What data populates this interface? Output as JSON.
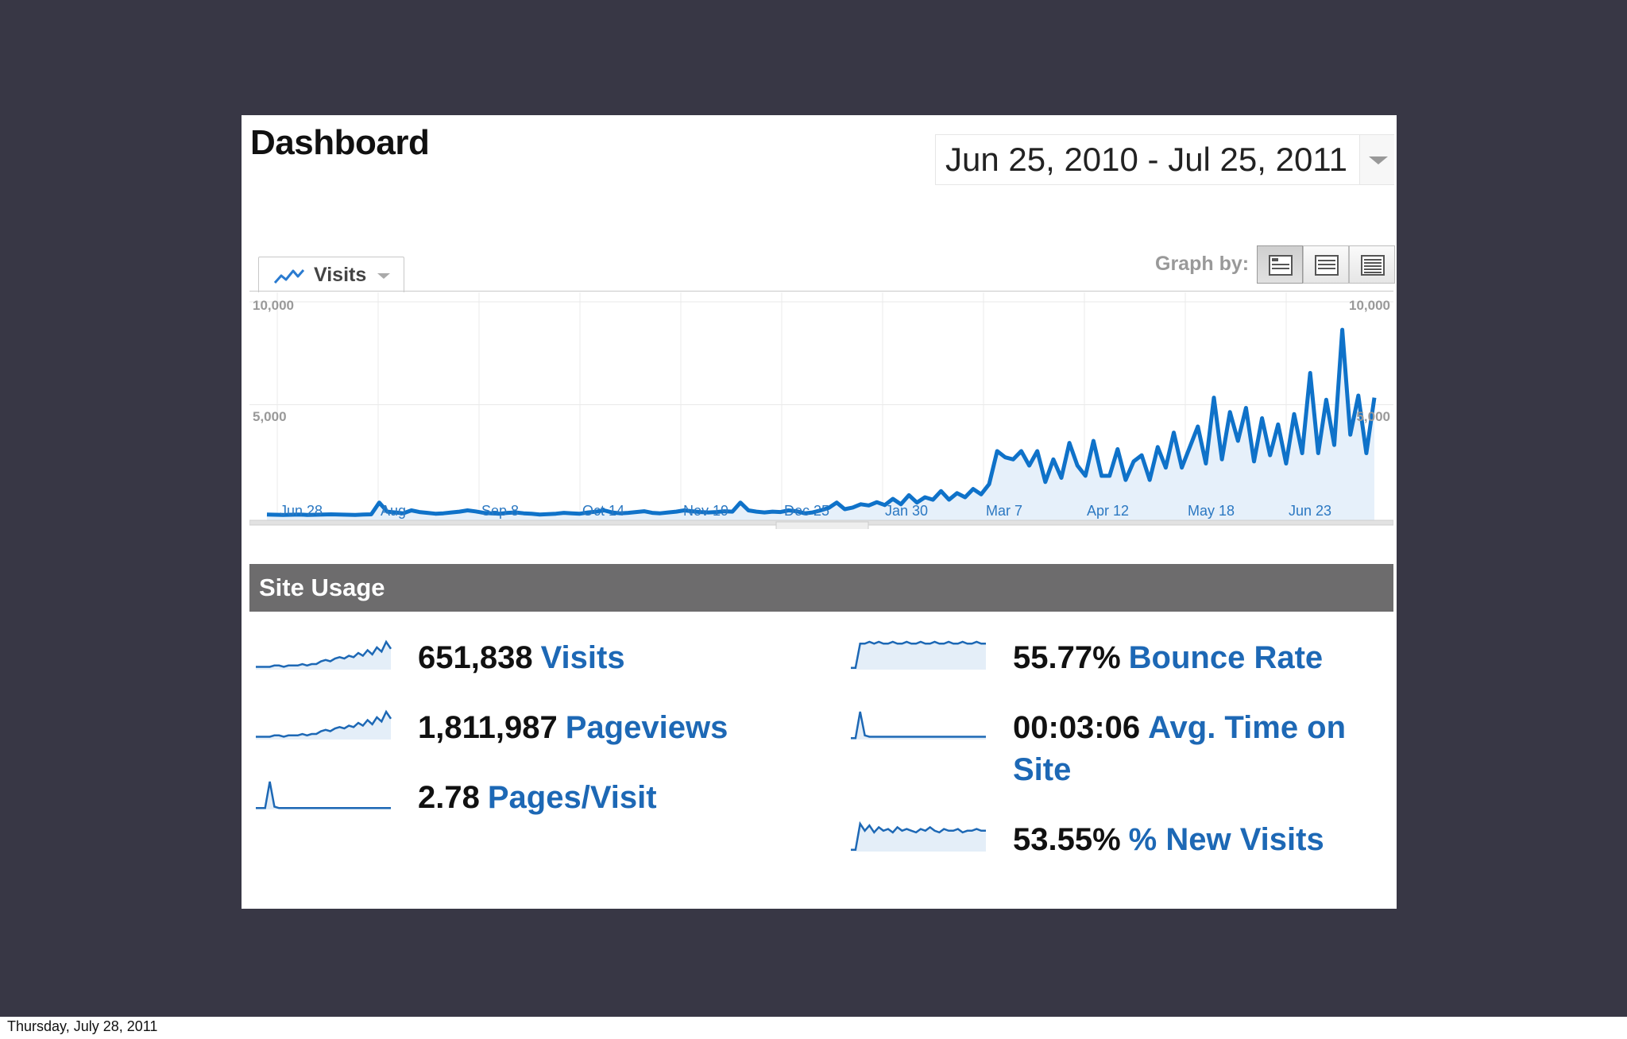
{
  "dashboard": {
    "title": "Dashboard",
    "date_range": "Jun 25, 2010 - Jul 25, 2011",
    "metric_selector": "Visits",
    "graph_by_label": "Graph by:",
    "graph_by_options": [
      "day",
      "week",
      "month"
    ]
  },
  "chart_data": {
    "type": "area",
    "series": [
      {
        "values": [
          320,
          310,
          300,
          310,
          320,
          300,
          310,
          320,
          330,
          320,
          310,
          300,
          320,
          330,
          900,
          460,
          420,
          380,
          520,
          440,
          400,
          360,
          380,
          420,
          460,
          520,
          470,
          400,
          380,
          360,
          400,
          420,
          380,
          360,
          320,
          340,
          360,
          400,
          380,
          360,
          420,
          460,
          520,
          420,
          380,
          400,
          440,
          480,
          400,
          380,
          420,
          460,
          520,
          480,
          440,
          420,
          440,
          480,
          460,
          900,
          520,
          460,
          420,
          460,
          440,
          520,
          480,
          380,
          420,
          520,
          640,
          900,
          580,
          660,
          820,
          760,
          920,
          780,
          1080,
          820,
          1260,
          900,
          1160,
          1040,
          1460,
          1040,
          1360,
          1160,
          1560,
          1300,
          1800,
          3400,
          3100,
          3000,
          3400,
          2700,
          3400,
          1900,
          3000,
          2100,
          3800,
          2700,
          2200,
          3900,
          2200,
          2200,
          3500,
          2000,
          2900,
          3200,
          2000,
          3600,
          2600,
          4300,
          2600,
          3600,
          4600,
          2800,
          6000,
          3000,
          5300,
          3900,
          5500,
          2900,
          5000,
          3200,
          4700,
          2800,
          5200,
          3300,
          7200,
          3300,
          5900,
          3700,
          9300,
          4200,
          6100,
          3300,
          6000
        ]
      }
    ],
    "x_tick_labels": [
      "Jun 28",
      "Aug",
      "Sep 8",
      "Oct 14",
      "Nov 19",
      "Dec 25",
      "Jan 30",
      "Mar 7",
      "Apr 12",
      "May 18",
      "Jun 23"
    ],
    "y_tick_labels_left": [
      "10,000",
      "5,000"
    ],
    "y_tick_labels_right": [
      "10,000",
      "5,000"
    ],
    "ylim": [
      0,
      10000
    ],
    "grid": true,
    "line_color": "#0f72c9",
    "fill_color": "#e6f0fa"
  },
  "site_usage": {
    "header": "Site Usage",
    "stats": [
      {
        "value": "651,838",
        "label": "Visits",
        "spark": [
          2,
          2,
          2,
          2,
          3,
          3,
          2,
          3,
          3,
          3,
          4,
          3,
          4,
          4,
          6,
          7,
          6,
          8,
          9,
          8,
          10,
          9,
          12,
          10,
          14,
          11,
          16,
          13,
          20,
          15
        ]
      },
      {
        "value": "1,811,987",
        "label": "Pageviews",
        "spark": [
          2,
          2,
          2,
          2,
          3,
          3,
          2,
          3,
          3,
          3,
          4,
          3,
          4,
          4,
          6,
          7,
          6,
          8,
          9,
          8,
          10,
          9,
          12,
          10,
          14,
          11,
          16,
          13,
          20,
          15
        ]
      },
      {
        "value": "2.78",
        "label": "Pages/Visit",
        "spark": [
          1,
          1,
          1,
          20,
          2,
          1,
          1,
          1,
          1,
          1,
          1,
          1,
          1,
          1,
          1,
          1,
          1,
          1,
          1,
          1,
          1,
          1,
          1,
          1,
          1,
          1,
          1,
          1,
          1,
          1
        ]
      },
      {
        "value": "55.77%",
        "label": "Bounce Rate",
        "spark": [
          1,
          1,
          14,
          14,
          15,
          14,
          15,
          14,
          14,
          15,
          14,
          14,
          15,
          14,
          14,
          15,
          14,
          14,
          15,
          14,
          14,
          15,
          14,
          14,
          15,
          14,
          14,
          15,
          14,
          14
        ]
      },
      {
        "value": "00:03:06",
        "label": "Avg. Time on Site",
        "spark": [
          1,
          1,
          20,
          3,
          2,
          2,
          2,
          2,
          2,
          2,
          2,
          2,
          2,
          2,
          2,
          2,
          2,
          2,
          2,
          2,
          2,
          2,
          2,
          2,
          2,
          2,
          2,
          2,
          2,
          2
        ]
      },
      {
        "value": "53.55%",
        "label": "% New Visits",
        "spark": [
          1,
          1,
          16,
          12,
          15,
          11,
          14,
          12,
          13,
          11,
          14,
          12,
          13,
          12,
          11,
          13,
          12,
          14,
          12,
          11,
          13,
          12,
          12,
          13,
          11,
          12,
          12,
          13,
          12,
          12
        ]
      }
    ],
    "spark_color": "#1d68b5",
    "spark_fill": "#e4eef8"
  },
  "footer": {
    "date": "Thursday, July 28, 2011"
  }
}
